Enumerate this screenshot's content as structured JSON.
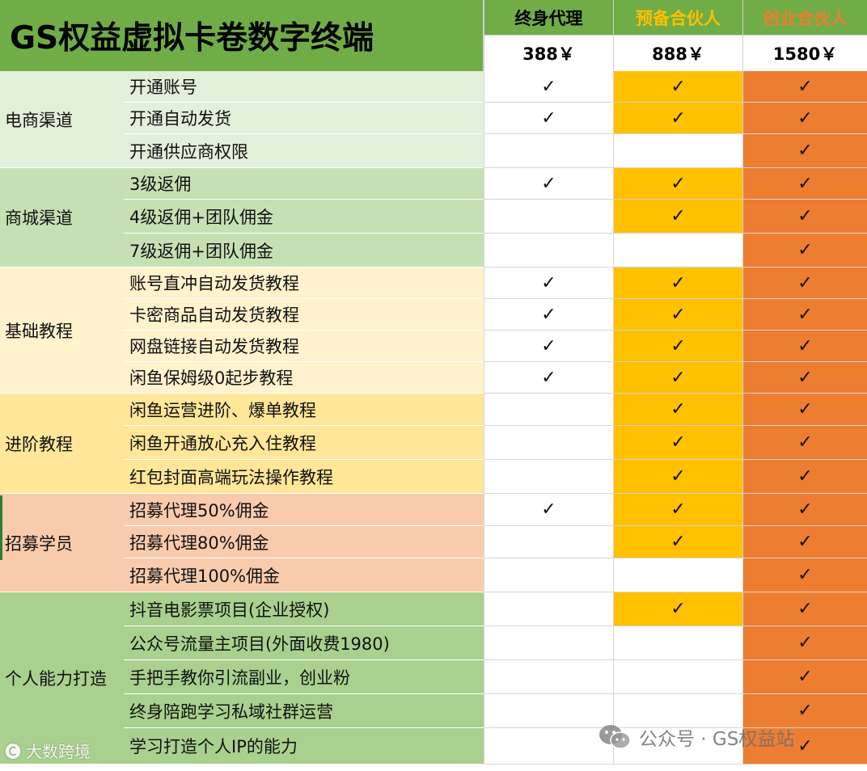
{
  "title": "GS权益虚拟卡卷数字终端",
  "plans": [
    {
      "name": "终身代理",
      "price": "388￥",
      "name_color": "#000000",
      "fill": "#ffffff"
    },
    {
      "name": "预备合伙人",
      "price": "888￥",
      "name_color": "#ffc000",
      "fill": "#ffc000"
    },
    {
      "name": "创业合伙人",
      "price": "1580￥",
      "name_color": "#ed7d31",
      "fill": "#ed7d31"
    }
  ],
  "check_symbol": "✓",
  "categories": [
    {
      "label": "电商渠道",
      "color": "#e2efda",
      "features": [
        {
          "label": "开通账号",
          "checks": [
            true,
            true,
            true
          ]
        },
        {
          "label": "开通自动发货",
          "checks": [
            true,
            true,
            true
          ]
        },
        {
          "label": "开通供应商权限",
          "checks": [
            false,
            false,
            true
          ]
        }
      ]
    },
    {
      "label": "商城渠道",
      "color": "#c6e0b4",
      "features": [
        {
          "label": "3级返佣",
          "checks": [
            true,
            true,
            true
          ]
        },
        {
          "label": "4级返佣+团队佣金",
          "checks": [
            false,
            true,
            true
          ]
        },
        {
          "label": "7级返佣+团队佣金",
          "checks": [
            false,
            false,
            true
          ]
        }
      ]
    },
    {
      "label": "基础教程",
      "color": "#fff2cc",
      "features": [
        {
          "label": "账号直冲自动发货教程",
          "checks": [
            true,
            true,
            true
          ]
        },
        {
          "label": "卡密商品自动发货教程",
          "checks": [
            true,
            true,
            true
          ]
        },
        {
          "label": "网盘链接自动发货教程",
          "checks": [
            true,
            true,
            true
          ]
        },
        {
          "label": "闲鱼保姆级0起步教程",
          "checks": [
            true,
            true,
            true
          ]
        }
      ]
    },
    {
      "label": "进阶教程",
      "color": "#ffe699",
      "features": [
        {
          "label": "闲鱼运营进阶、爆单教程",
          "checks": [
            false,
            true,
            true
          ]
        },
        {
          "label": "闲鱼开通放心充入住教程",
          "checks": [
            false,
            true,
            true
          ]
        },
        {
          "label": "红包封面高端玩法操作教程",
          "checks": [
            false,
            true,
            true
          ]
        }
      ]
    },
    {
      "label": "招募学员",
      "color": "#f8cbad",
      "features": [
        {
          "label": "招募代理50%佣金",
          "checks": [
            true,
            true,
            true
          ]
        },
        {
          "label": "招募代理80%佣金",
          "checks": [
            false,
            true,
            true
          ]
        },
        {
          "label": "招募代理100%佣金",
          "checks": [
            false,
            false,
            true
          ]
        }
      ]
    },
    {
      "label": "个人能力打造",
      "color": "#a9d08e",
      "features": [
        {
          "label": "抖音电影票项目(企业授权)",
          "checks": [
            false,
            true,
            true
          ]
        },
        {
          "label": "公众号流量主项目(外面收费1980)",
          "checks": [
            false,
            false,
            true
          ]
        },
        {
          "label": "手把手教你引流副业，创业粉",
          "checks": [
            false,
            false,
            true
          ]
        },
        {
          "label": "终身陪跑学习私域社群运营",
          "checks": [
            false,
            false,
            true
          ]
        },
        {
          "label": "学习打造个人IP的能力",
          "checks": [
            false,
            false,
            true
          ]
        }
      ]
    }
  ],
  "watermarks": {
    "left": "大数跨境",
    "right": "公众号 · GS权益站"
  }
}
